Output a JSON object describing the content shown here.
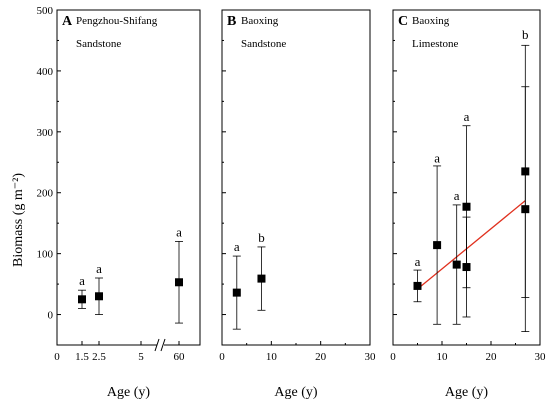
{
  "figure": {
    "ylabel": "Biomass (g m⁻²)",
    "xlabel": "Age (y)",
    "yticks": [
      0,
      100,
      200,
      300,
      400,
      500
    ],
    "ylim": [
      -50,
      500
    ]
  },
  "chart_data": [
    {
      "type": "scatter",
      "panel_letter": "A",
      "site_line1": "Pengzhou-Shifang",
      "site_line2": "Sandstone",
      "x_axis_broken": true,
      "x_tick_labels": [
        "0",
        "1.5",
        "2.5",
        "5",
        "60"
      ],
      "xlabel": "Age (y)",
      "ylabel": "Biomass (g m⁻²)",
      "ylim": [
        -50,
        500
      ],
      "points": [
        {
          "x": 1.5,
          "y": 25,
          "err": 15,
          "label": "a"
        },
        {
          "x": 2.5,
          "y": 30,
          "err": 30,
          "label": "a"
        },
        {
          "x": 60,
          "y": 53,
          "err": 67,
          "label": "a"
        }
      ]
    },
    {
      "type": "scatter",
      "panel_letter": "B",
      "site_line1": "Baoxing",
      "site_line2": "Sandstone",
      "xlim": [
        0,
        30
      ],
      "x_tick_labels": [
        "0",
        "10",
        "20",
        "30"
      ],
      "xlabel": "Age (y)",
      "ylim": [
        -50,
        500
      ],
      "points": [
        {
          "x": 3,
          "y": 36,
          "err": 60,
          "label": "a"
        },
        {
          "x": 8,
          "y": 59,
          "err": 52,
          "label": "b"
        }
      ]
    },
    {
      "type": "scatter",
      "panel_letter": "C",
      "site_line1": "Baoxing",
      "site_line2": "Limestone",
      "xlim": [
        0,
        30
      ],
      "x_tick_labels": [
        "0",
        "10",
        "20",
        "30"
      ],
      "xlabel": "Age (y)",
      "ylim": [
        -50,
        500
      ],
      "points": [
        {
          "x": 5,
          "y": 47,
          "err": 26
        },
        {
          "x": 9,
          "y": 114,
          "err": 130
        },
        {
          "x": 13,
          "y": 82,
          "err": 98
        },
        {
          "x": 15,
          "y": 177,
          "err": 133
        },
        {
          "x": 15,
          "y": 78,
          "err": 82
        },
        {
          "x": 27,
          "y": 235,
          "err": 207
        },
        {
          "x": 27,
          "y": 173,
          "err": 201
        }
      ],
      "group_labels": [
        {
          "x": 5,
          "y": 80,
          "label": "a"
        },
        {
          "x": 9,
          "y": 250,
          "label": "a"
        },
        {
          "x": 13,
          "y": 188,
          "label": "a"
        },
        {
          "x": 15,
          "y": 318,
          "label": "a"
        },
        {
          "x": 27,
          "y": 452,
          "label": "b"
        }
      ],
      "trend_line": {
        "x": [
          5,
          27
        ],
        "y": [
          42,
          187
        ],
        "color": "#e0301e"
      }
    }
  ]
}
